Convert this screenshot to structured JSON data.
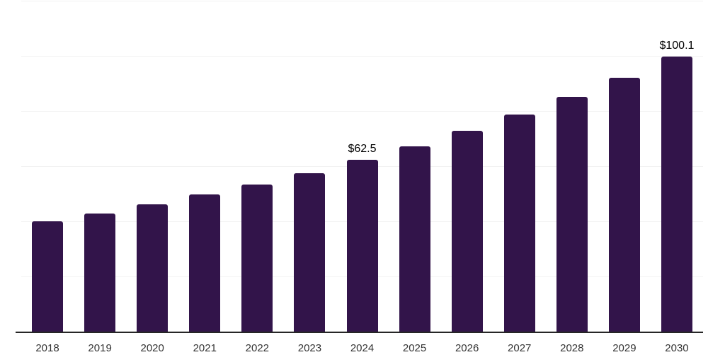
{
  "chart_data": {
    "type": "bar",
    "categories": [
      "2018",
      "2019",
      "2020",
      "2021",
      "2022",
      "2023",
      "2024",
      "2025",
      "2026",
      "2027",
      "2028",
      "2029",
      "2030"
    ],
    "values": [
      40.2,
      43.1,
      46.5,
      50.0,
      53.6,
      57.7,
      62.5,
      67.4,
      73.2,
      79.0,
      85.3,
      92.3,
      100.1
    ],
    "data_labels": [
      {
        "category": "2024",
        "text": "$62.5"
      },
      {
        "category": "2030",
        "text": "$100.1"
      }
    ],
    "title": "",
    "xlabel": "",
    "ylabel": "",
    "ylim": [
      0,
      120
    ],
    "grid_step": 20,
    "grid": true,
    "legend": false,
    "colors": {
      "bar": "#32144a",
      "gridline": "#f2f2f2",
      "axis": "#262626",
      "tick_label": "#333333",
      "data_label": "#000000",
      "background": "#ffffff"
    }
  }
}
